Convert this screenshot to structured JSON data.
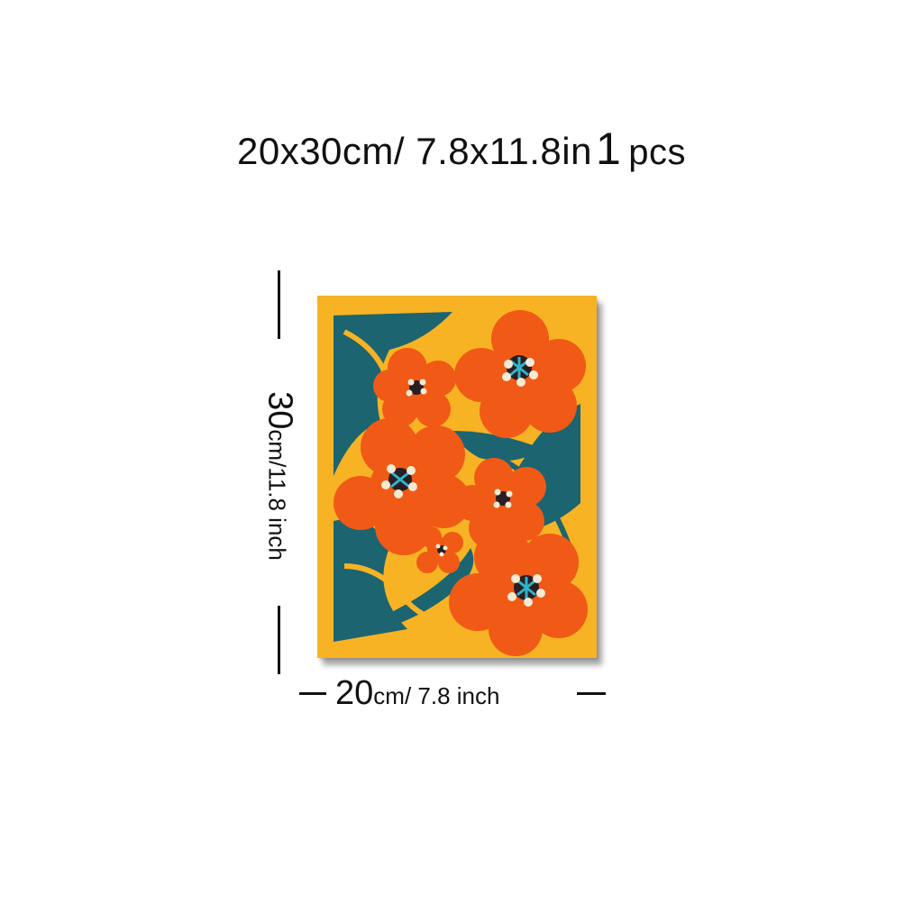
{
  "headline": {
    "part1": "20x30cm/ 7.8x11.8in",
    "quantity": "1",
    "unit": "pcs"
  },
  "height_label": {
    "value": "30",
    "unit": "cm",
    "alt": "/11.8 inch"
  },
  "width_label": {
    "value": "20",
    "unit": "cm",
    "alt": "/ 7.8 inch"
  },
  "poster": {
    "icon": "orange-flowers-art-print",
    "colors": {
      "background": "#F7B323",
      "petal": "#F05A16",
      "petal_dark": "#D94712",
      "leaf": "#1C6470",
      "center": "#2A1E24",
      "stamen": "#F4EBD4",
      "star": "#2FB6C8"
    }
  }
}
